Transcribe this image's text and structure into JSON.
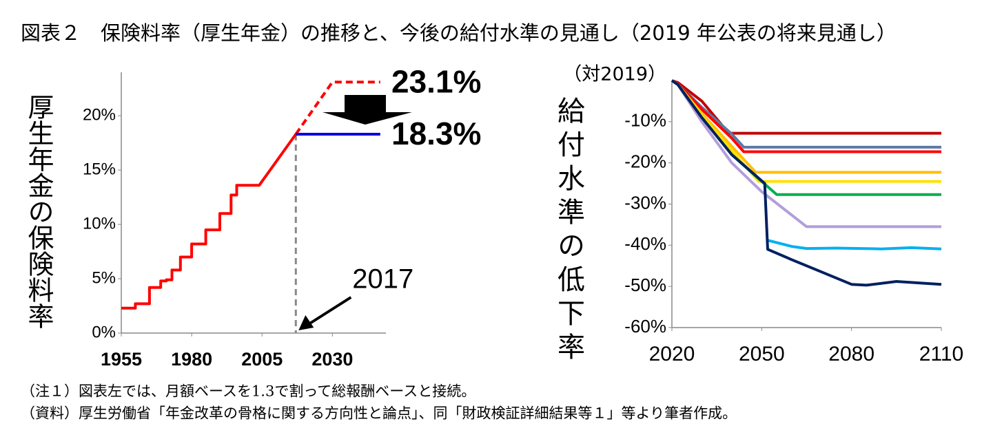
{
  "title": "図表２　保険料率（厚生年金）の推移と、今後の給付水準の見通し（2019 年公表の将来見通し）",
  "chart_data": [
    {
      "type": "line",
      "y_label": "厚生年金の保険料率",
      "xlim": [
        1955,
        2049
      ],
      "ylim": [
        0,
        24
      ],
      "xticks": [
        1955,
        1980,
        2005,
        2030
      ],
      "yticks": [
        {
          "value": 0,
          "label": "0%"
        },
        {
          "value": 5,
          "label": "5%"
        },
        {
          "value": 10,
          "label": "10%"
        },
        {
          "value": 15,
          "label": "15%"
        },
        {
          "value": 20,
          "label": "20%"
        }
      ],
      "series": [
        {
          "color": "#ff0000",
          "style": "solid",
          "x": [
            1955,
            1960,
            1960,
            1965,
            1965,
            1969,
            1969,
            1971,
            1971,
            1973,
            1973,
            1976,
            1976,
            1980,
            1980,
            1985,
            1985,
            1990,
            1990,
            1994,
            1994,
            1996,
            1996,
            2004,
            2017
          ],
          "values": [
            2.3,
            2.3,
            2.7,
            2.7,
            4.2,
            4.2,
            4.8,
            4.8,
            4.9,
            4.9,
            5.8,
            5.8,
            7.0,
            7.0,
            8.2,
            8.2,
            9.5,
            9.5,
            11.0,
            11.0,
            12.7,
            12.7,
            13.6,
            13.6,
            18.3
          ]
        },
        {
          "color": "#ff0000",
          "style": "dashed",
          "x": [
            2017,
            2030,
            2047
          ],
          "values": [
            18.3,
            23.1,
            23.1
          ]
        },
        {
          "color": "#0000dd",
          "style": "solid",
          "x": [
            2017,
            2047
          ],
          "values": [
            18.3,
            18.3
          ]
        }
      ],
      "annotations": [
        {
          "text": "23.1%",
          "color": "#ff0000"
        },
        {
          "text": "18.3%",
          "color": "#0000dd"
        },
        {
          "text": "2017",
          "x": 2017
        }
      ]
    },
    {
      "type": "line",
      "y_label": "給付水準の低下率",
      "y_unit": "（対2019）",
      "xlim": [
        2020,
        2110
      ],
      "ylim": [
        -60,
        0
      ],
      "xticks": [
        2020,
        2050,
        2080,
        2110
      ],
      "yticks": [
        {
          "value": -60,
          "label": "-60%"
        },
        {
          "value": -50,
          "label": "-50%"
        },
        {
          "value": -40,
          "label": "-40%"
        },
        {
          "value": -30,
          "label": "-30%"
        },
        {
          "value": -20,
          "label": "-20%"
        },
        {
          "value": -10,
          "label": "-10%"
        }
      ],
      "series": [
        {
          "color": "#c00000",
          "x": [
            2020,
            2022,
            2030,
            2039,
            2110
          ],
          "values": [
            0,
            -0.5,
            -5,
            -12.8,
            -12.8
          ]
        },
        {
          "color": "#5b7ba6",
          "x": [
            2020,
            2022,
            2030,
            2040,
            2044,
            2110
          ],
          "values": [
            0,
            -0.8,
            -6.5,
            -13,
            -16.2,
            -16.2
          ]
        },
        {
          "color": "#ff0000",
          "x": [
            2020,
            2022,
            2030,
            2040,
            2044,
            2110
          ],
          "values": [
            0,
            -0.8,
            -7,
            -14,
            -17.3,
            -17.3
          ]
        },
        {
          "color": "#ffc000",
          "x": [
            2020,
            2022,
            2030,
            2040,
            2048,
            2110
          ],
          "values": [
            0,
            -1,
            -8,
            -16,
            -22.3,
            -22.3
          ]
        },
        {
          "color": "#ffe000",
          "x": [
            2020,
            2022,
            2030,
            2040,
            2049,
            2110
          ],
          "values": [
            0,
            -1,
            -8.5,
            -17,
            -24.5,
            -24.5
          ]
        },
        {
          "color": "#00b050",
          "x": [
            2020,
            2022,
            2030,
            2040,
            2050,
            2055,
            2110
          ],
          "values": [
            0,
            -1,
            -9,
            -18,
            -24.5,
            -27.7,
            -27.7
          ]
        },
        {
          "color": "#b39ddb",
          "x": [
            2020,
            2022,
            2030,
            2040,
            2050,
            2065,
            2110
          ],
          "values": [
            0,
            -1,
            -10,
            -20,
            -27,
            -35.5,
            -35.5
          ]
        },
        {
          "color": "#00b0f0",
          "x": [
            2052,
            2060,
            2065,
            2075,
            2090,
            2100,
            2110
          ],
          "values": [
            -38.8,
            -40.3,
            -40.8,
            -40.7,
            -40.9,
            -40.6,
            -40.9
          ]
        },
        {
          "color": "#002060",
          "x": [
            2020,
            2022,
            2030,
            2040,
            2051,
            2052,
            2060,
            2070,
            2080,
            2085,
            2095,
            2110
          ],
          "values": [
            0,
            -1,
            -9,
            -18,
            -25,
            -41,
            -43.5,
            -46.5,
            -49.5,
            -49.7,
            -48.8,
            -49.5
          ]
        }
      ]
    }
  ],
  "notes": [
    "（注１）図表左では、月額ベースを1.3で割って総報酬ベースと接続。",
    "（資料）厚生労働省「年金改革の骨格に関する方向性と論点」、同「財政検証詳細結果等１」等より筆者作成。"
  ]
}
